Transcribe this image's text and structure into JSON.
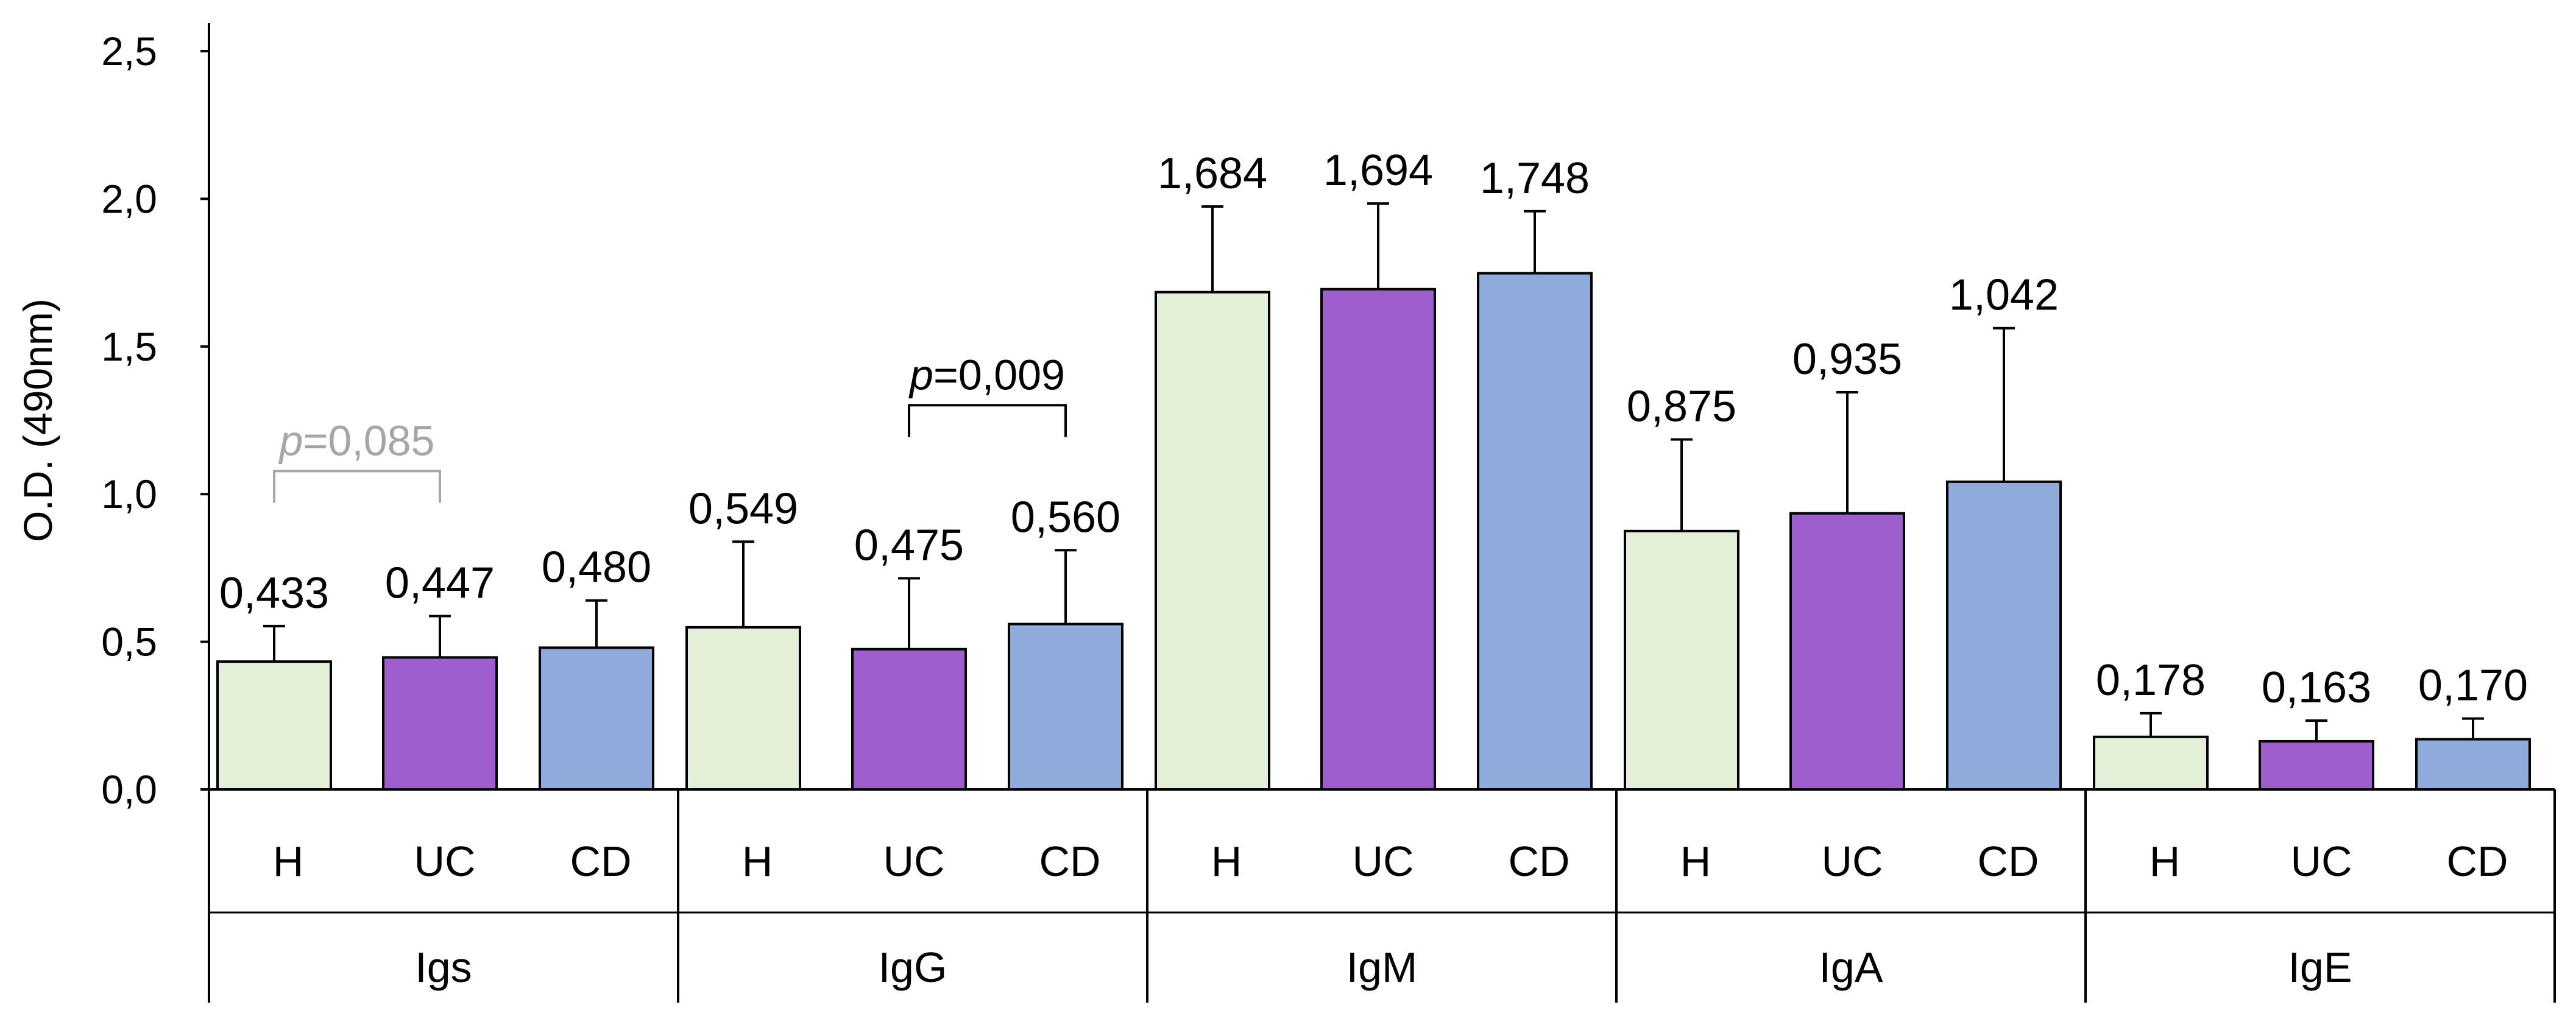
{
  "chart_data": {
    "type": "bar",
    "ylabel": "O.D. (490nm)",
    "ylim": [
      0,
      2.5
    ],
    "yticks": [
      "0,0",
      "0,5",
      "1,0",
      "1,5",
      "2,0",
      "2,5"
    ],
    "groups": [
      {
        "name": "Igs",
        "categories": [
          "H",
          "UC",
          "CD"
        ],
        "values": [
          0.433,
          0.447,
          0.48
        ],
        "labels": [
          "0,433",
          "0,447",
          "0,480"
        ],
        "errors": [
          0.12,
          0.14,
          0.16
        ]
      },
      {
        "name": "IgG",
        "categories": [
          "H",
          "UC",
          "CD"
        ],
        "values": [
          0.549,
          0.475,
          0.56
        ],
        "labels": [
          "0,549",
          "0,475",
          "0,560"
        ],
        "errors": [
          0.29,
          0.24,
          0.25
        ]
      },
      {
        "name": "IgM",
        "categories": [
          "H",
          "UC",
          "CD"
        ],
        "values": [
          1.684,
          1.694,
          1.748
        ],
        "labels": [
          "1,684",
          "1,694",
          "1,748"
        ],
        "errors": [
          0.29,
          0.29,
          0.21
        ]
      },
      {
        "name": "IgA",
        "categories": [
          "H",
          "UC",
          "CD"
        ],
        "values": [
          0.875,
          0.935,
          1.042
        ],
        "labels": [
          "0,875",
          "0,935",
          "1,042"
        ],
        "errors": [
          0.31,
          0.41,
          0.52
        ]
      },
      {
        "name": "IgE",
        "categories": [
          "H",
          "UC",
          "CD"
        ],
        "values": [
          0.178,
          0.163,
          0.17
        ],
        "labels": [
          "0,178",
          "0,163",
          "0,170"
        ],
        "errors": [
          0.08,
          0.07,
          0.07
        ]
      }
    ],
    "colors": {
      "H": "#e3efd9",
      "UC": "#9e5ecd",
      "CD": "#8eabdb"
    },
    "annotations": [
      {
        "group": 0,
        "from": 0,
        "to": 1,
        "p_symbol": "p",
        "p_value": "=0,085",
        "color": "#a6a6a6"
      },
      {
        "group": 1,
        "from": 1,
        "to": 2,
        "p_symbol": "p",
        "p_value": "=0,009",
        "color": "#000000"
      }
    ]
  }
}
